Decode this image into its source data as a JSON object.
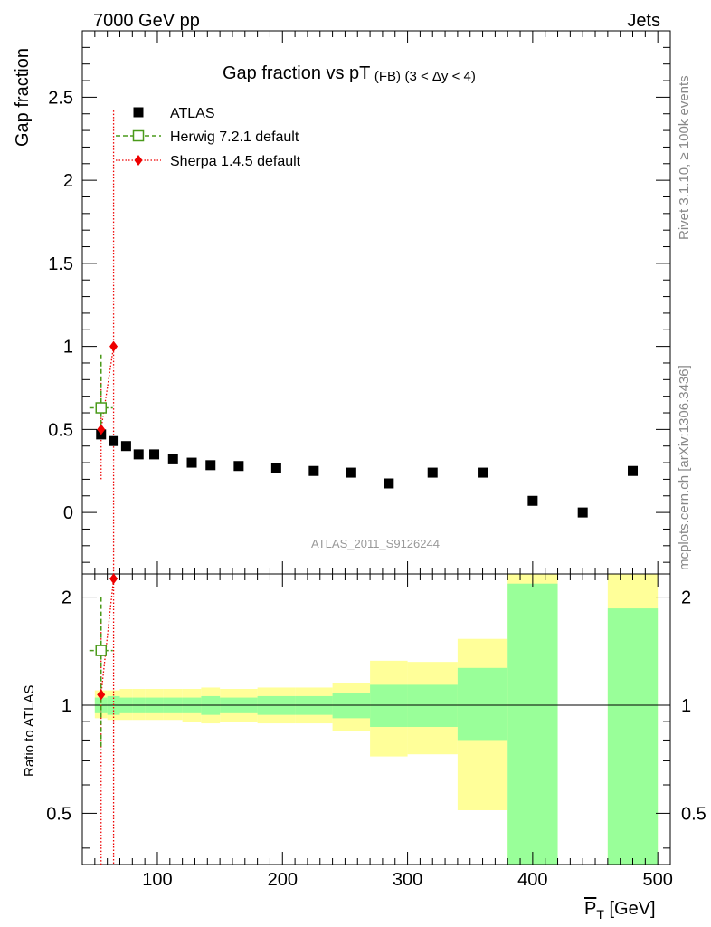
{
  "header": {
    "energy_label": "7000 GeV pp",
    "process_label": "Jets"
  },
  "side_labels": {
    "rivet": "Rivet 3.1.10, ≥ 100k events",
    "mcplots": "mcplots.cern.ch [arXiv:1306.3436]"
  },
  "colors": {
    "data": "#000000",
    "herwig": "#4a9a1a",
    "sherpa": "#ee0000",
    "band_inner": "#99ff99",
    "band_outer": "#ffff99"
  },
  "chart_data": [
    {
      "type": "scatter",
      "title": "Gap fraction vs pT",
      "title_sub": "(FB)",
      "title_range": "(3 < Δy < 4)",
      "ylabel": "Gap fraction",
      "xlabel": "P_T [GeV]",
      "xlim": [
        40,
        510
      ],
      "ylim": [
        -0.37,
        2.9
      ],
      "yticks": [
        0,
        0.5,
        1,
        1.5,
        2,
        2.5
      ],
      "yticklabels": [
        "0",
        "0.5",
        "1",
        "1.5",
        "2",
        "2.5"
      ],
      "watermark": "ATLAS_2011_S9126244",
      "legend": {
        "placement": "top-left",
        "entries": [
          {
            "key": "data",
            "label": "ATLAS"
          },
          {
            "key": "herwig",
            "label": "Herwig 7.2.1 default"
          },
          {
            "key": "sherpa",
            "label": "Sherpa 1.4.5 default"
          }
        ]
      },
      "series": [
        {
          "name": "ATLAS",
          "x": [
            55,
            65,
            75,
            85,
            97.5,
            112.5,
            127.5,
            142.5,
            165,
            195,
            225,
            255,
            285,
            320,
            360,
            400,
            440,
            480
          ],
          "y": [
            0.47,
            0.43,
            0.4,
            0.35,
            0.35,
            0.32,
            0.3,
            0.285,
            0.28,
            0.265,
            0.25,
            0.24,
            0.175,
            0.24,
            0.24,
            0.07,
            0.0,
            0.25
          ]
        },
        {
          "name": "Herwig 7.2.1 default",
          "x": [
            55
          ],
          "y": [
            0.63
          ],
          "yerr_low": [
            0.43
          ],
          "yerr_high": [
            0.95
          ]
        },
        {
          "name": "Sherpa 1.4.5 default",
          "x": [
            55,
            65
          ],
          "y": [
            0.5,
            1.0
          ],
          "yerr_low": [
            0.2,
            -0.37
          ],
          "yerr_high": [
            0.8,
            2.42
          ]
        }
      ]
    },
    {
      "type": "area",
      "ylabel": "Ratio to ATLAS",
      "xlabel": "P_T [GeV]",
      "xlim": [
        40,
        510
      ],
      "ylim": [
        0.36,
        2.32
      ],
      "yscale": "log",
      "yticks": [
        0.5,
        1,
        2
      ],
      "yticklabels": [
        "0.5",
        "1",
        "2"
      ],
      "xticks": [
        100,
        200,
        300,
        400,
        500
      ],
      "xticklabels": [
        "100",
        "200",
        "300",
        "400",
        "500"
      ],
      "bins": [
        {
          "xlow": 50,
          "xhigh": 60,
          "inner": [
            0.95,
            1.05
          ],
          "outer": [
            0.92,
            1.1
          ]
        },
        {
          "xlow": 60,
          "xhigh": 70,
          "inner": [
            0.94,
            1.06
          ],
          "outer": [
            0.91,
            1.1
          ]
        },
        {
          "xlow": 70,
          "xhigh": 80,
          "inner": [
            0.95,
            1.05
          ],
          "outer": [
            0.91,
            1.11
          ]
        },
        {
          "xlow": 80,
          "xhigh": 90,
          "inner": [
            0.95,
            1.05
          ],
          "outer": [
            0.91,
            1.11
          ]
        },
        {
          "xlow": 90,
          "xhigh": 105,
          "inner": [
            0.95,
            1.05
          ],
          "outer": [
            0.91,
            1.11
          ]
        },
        {
          "xlow": 105,
          "xhigh": 120,
          "inner": [
            0.95,
            1.05
          ],
          "outer": [
            0.91,
            1.11
          ]
        },
        {
          "xlow": 120,
          "xhigh": 135,
          "inner": [
            0.95,
            1.05
          ],
          "outer": [
            0.9,
            1.11
          ]
        },
        {
          "xlow": 135,
          "xhigh": 150,
          "inner": [
            0.94,
            1.06
          ],
          "outer": [
            0.89,
            1.12
          ]
        },
        {
          "xlow": 150,
          "xhigh": 180,
          "inner": [
            0.95,
            1.05
          ],
          "outer": [
            0.9,
            1.11
          ]
        },
        {
          "xlow": 180,
          "xhigh": 210,
          "inner": [
            0.94,
            1.06
          ],
          "outer": [
            0.89,
            1.12
          ]
        },
        {
          "xlow": 210,
          "xhigh": 240,
          "inner": [
            0.94,
            1.06
          ],
          "outer": [
            0.89,
            1.12
          ]
        },
        {
          "xlow": 240,
          "xhigh": 270,
          "inner": [
            0.92,
            1.08
          ],
          "outer": [
            0.85,
            1.15
          ]
        },
        {
          "xlow": 270,
          "xhigh": 300,
          "inner": [
            0.87,
            1.14
          ],
          "outer": [
            0.72,
            1.33
          ]
        },
        {
          "xlow": 300,
          "xhigh": 340,
          "inner": [
            0.87,
            1.14
          ],
          "outer": [
            0.73,
            1.32
          ]
        },
        {
          "xlow": 340,
          "xhigh": 380,
          "inner": [
            0.8,
            1.27
          ],
          "outer": [
            0.51,
            1.53
          ]
        },
        {
          "xlow": 380,
          "xhigh": 420,
          "inner": [
            0.36,
            2.18
          ],
          "outer": [
            0.36,
            2.32
          ]
        },
        {
          "xlow": 460,
          "xhigh": 500,
          "inner": [
            0.36,
            1.86
          ],
          "outer": [
            0.36,
            2.32
          ]
        }
      ],
      "series": [
        {
          "name": "Herwig 7.2.1 default",
          "x": [
            55
          ],
          "y": [
            1.42
          ],
          "yerr_low": [
            0.75
          ],
          "yerr_high": [
            2.0
          ]
        },
        {
          "name": "Sherpa 1.4.5 default",
          "x": [
            55,
            65
          ],
          "y": [
            1.07,
            2.25
          ],
          "yerr_low": [
            0.36,
            0.36
          ],
          "yerr_high": [
            1.7,
            2.32
          ]
        }
      ]
    }
  ]
}
